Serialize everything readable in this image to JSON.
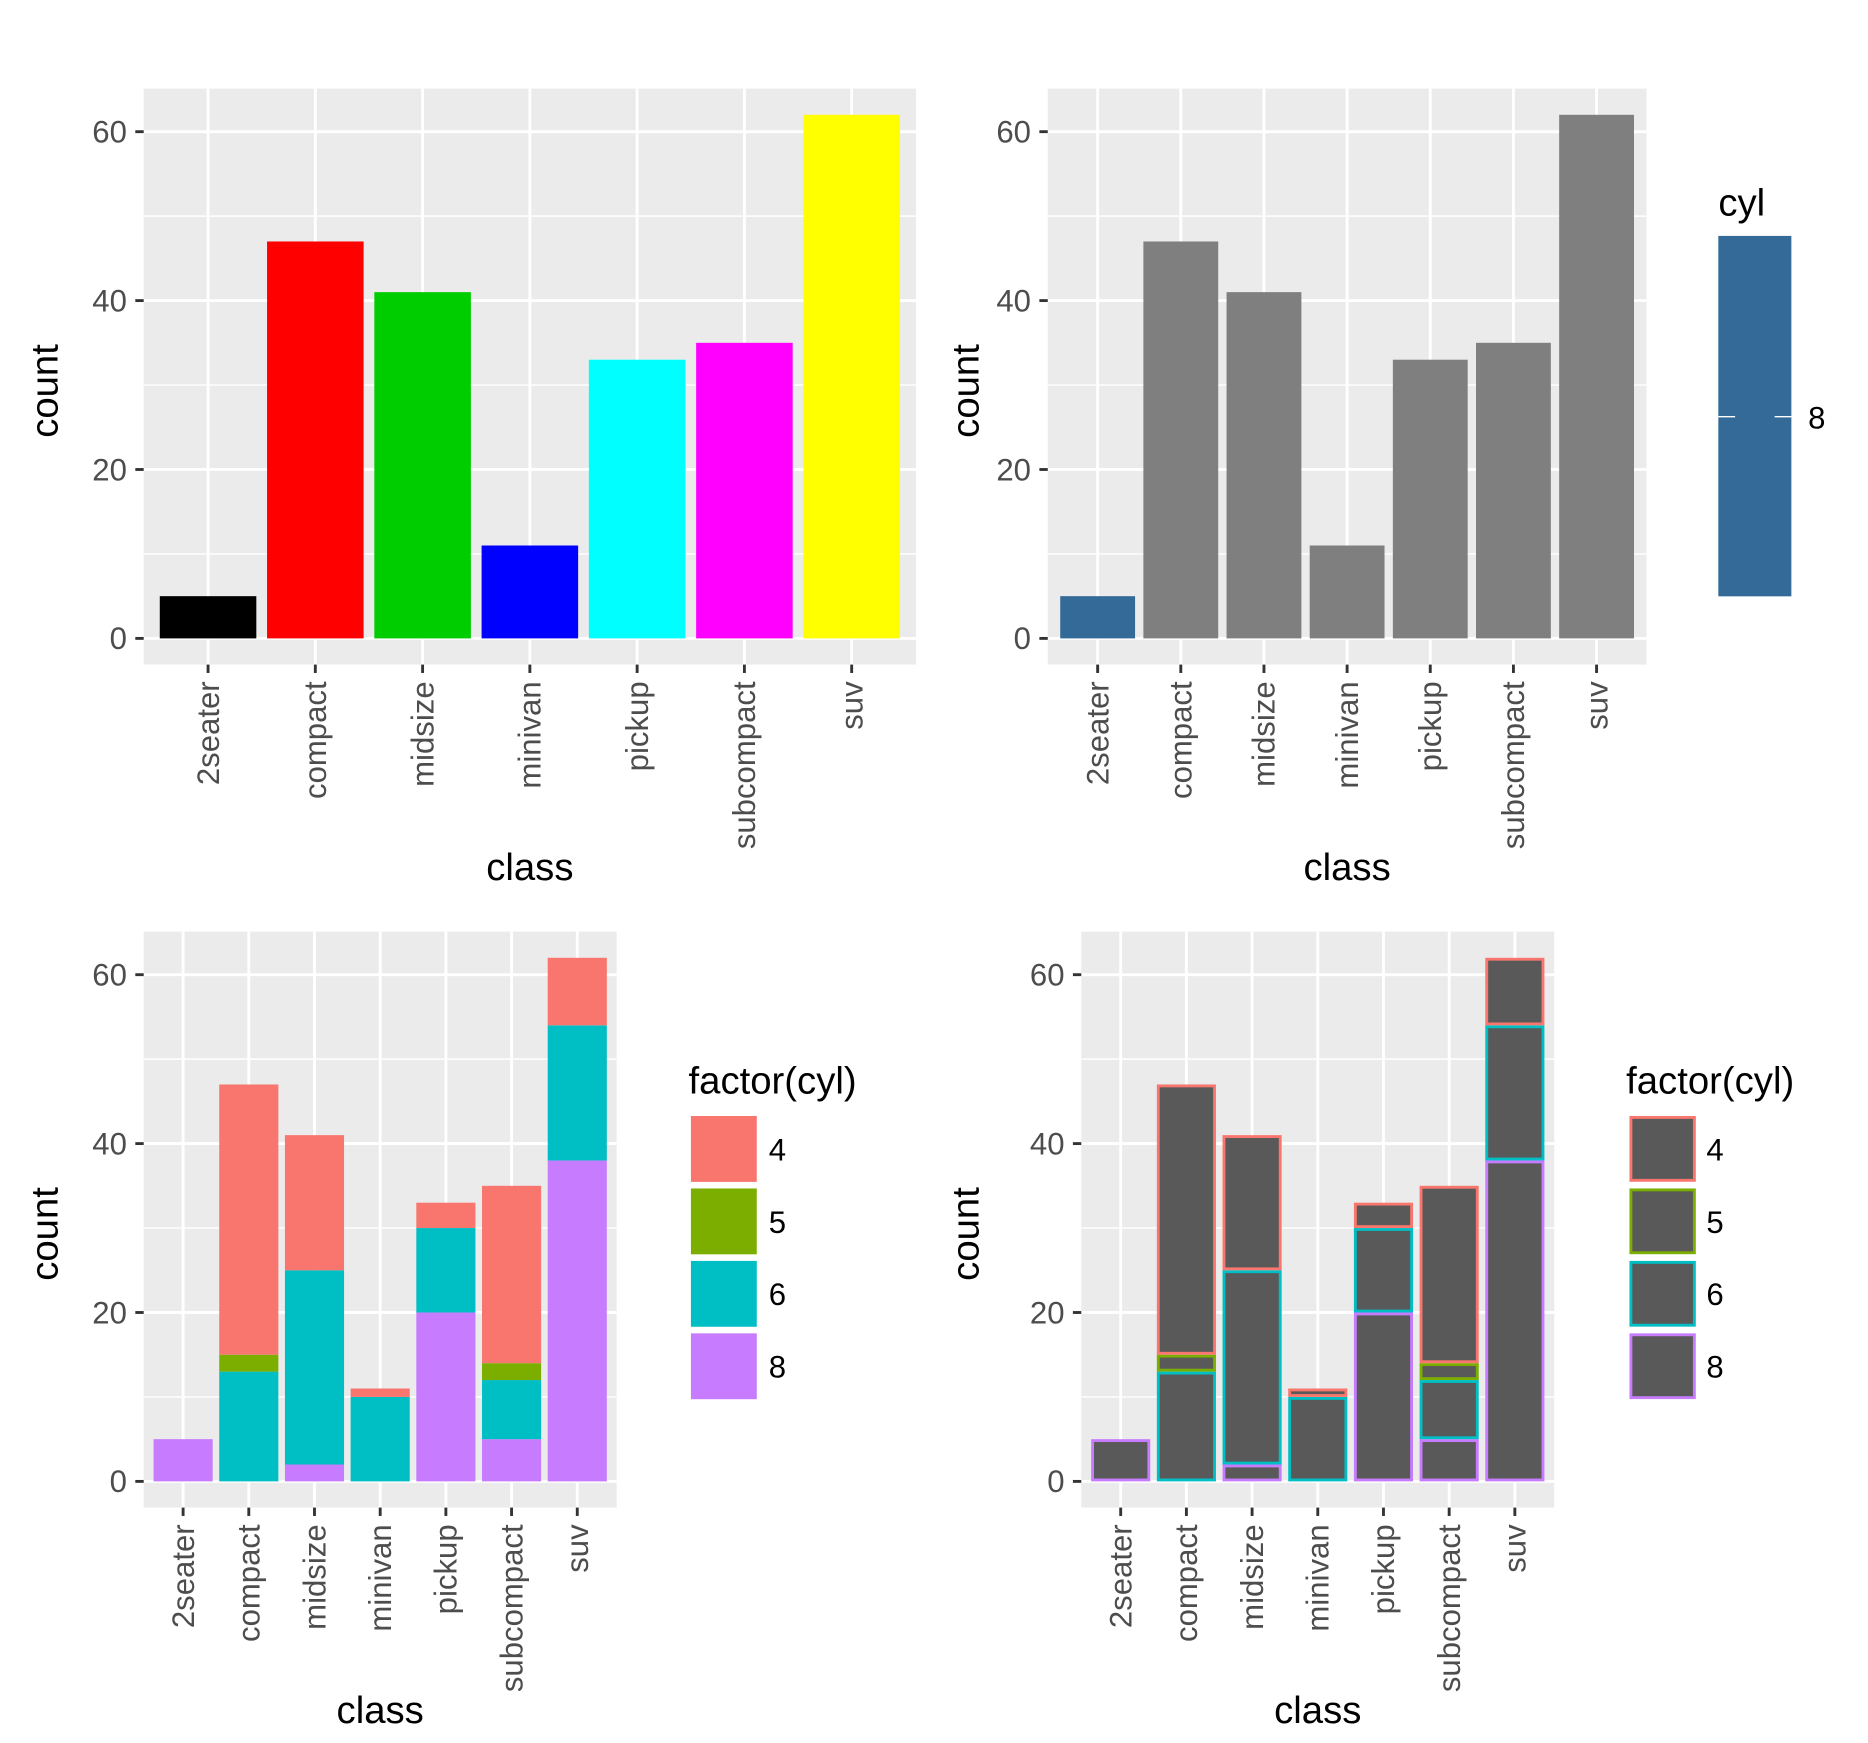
{
  "chart_data": [
    {
      "type": "bar",
      "xlabel": "class",
      "ylabel": "count",
      "categories": [
        "2seater",
        "compact",
        "midsize",
        "minivan",
        "pickup",
        "subcompact",
        "suv"
      ],
      "values": [
        5,
        47,
        41,
        11,
        33,
        35,
        62
      ],
      "bar_colors": [
        "#000000",
        "#FF0000",
        "#00CD00",
        "#0000FF",
        "#00FFFF",
        "#FF00FF",
        "#FFFF00"
      ],
      "yticks": [
        0,
        20,
        40,
        60
      ],
      "ylim": [
        -3.1,
        65.1
      ],
      "grid": true
    },
    {
      "type": "bar",
      "xlabel": "class",
      "ylabel": "count",
      "categories": [
        "2seater",
        "compact",
        "midsize",
        "minivan",
        "pickup",
        "subcompact",
        "suv"
      ],
      "values": [
        5,
        47,
        41,
        11,
        33,
        35,
        62
      ],
      "bar_colors": [
        "#336A98",
        "#7F7F7F",
        "#7F7F7F",
        "#7F7F7F",
        "#7F7F7F",
        "#7F7F7F",
        "#7F7F7F"
      ],
      "yticks": [
        0,
        20,
        40,
        60
      ],
      "ylim": [
        -3.1,
        65.1
      ],
      "grid": true,
      "legend": {
        "title": "cyl",
        "type": "colorbar",
        "labels": [
          "8"
        ],
        "color": "#336A98",
        "placement": "right"
      }
    },
    {
      "type": "stacked-bar",
      "xlabel": "class",
      "ylabel": "count",
      "categories": [
        "2seater",
        "compact",
        "midsize",
        "minivan",
        "pickup",
        "subcompact",
        "suv"
      ],
      "series": [
        {
          "name": "4",
          "color": "#F8766D",
          "values": [
            0,
            32,
            16,
            1,
            3,
            21,
            8
          ]
        },
        {
          "name": "5",
          "color": "#7CAE00",
          "values": [
            0,
            2,
            0,
            0,
            0,
            2,
            0
          ]
        },
        {
          "name": "6",
          "color": "#00BFC4",
          "values": [
            0,
            13,
            23,
            10,
            10,
            7,
            16
          ]
        },
        {
          "name": "8",
          "color": "#C77CFF",
          "values": [
            5,
            0,
            2,
            0,
            20,
            5,
            38
          ]
        }
      ],
      "yticks": [
        0,
        20,
        40,
        60
      ],
      "ylim": [
        -3.1,
        65.1
      ],
      "grid": true,
      "legend": {
        "title": "factor(cyl)",
        "placement": "right"
      }
    },
    {
      "type": "stacked-bar",
      "xlabel": "class",
      "ylabel": "count",
      "categories": [
        "2seater",
        "compact",
        "midsize",
        "minivan",
        "pickup",
        "subcompact",
        "suv"
      ],
      "fill": "#595959",
      "outline_by_series": true,
      "series": [
        {
          "name": "4",
          "color": "#F8766D",
          "values": [
            0,
            32,
            16,
            1,
            3,
            21,
            8
          ]
        },
        {
          "name": "5",
          "color": "#7CAE00",
          "values": [
            0,
            2,
            0,
            0,
            0,
            2,
            0
          ]
        },
        {
          "name": "6",
          "color": "#00BFC4",
          "values": [
            0,
            13,
            23,
            10,
            10,
            7,
            16
          ]
        },
        {
          "name": "8",
          "color": "#C77CFF",
          "values": [
            5,
            0,
            2,
            0,
            20,
            5,
            38
          ]
        }
      ],
      "yticks": [
        0,
        20,
        40,
        60
      ],
      "ylim": [
        -3.1,
        65.1
      ],
      "grid": true,
      "legend": {
        "title": "factor(cyl)",
        "placement": "right"
      }
    }
  ]
}
